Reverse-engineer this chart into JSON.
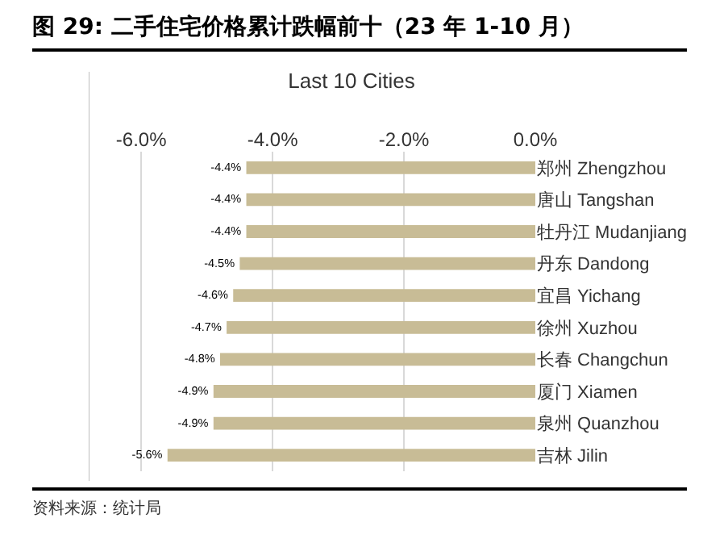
{
  "chart_data": {
    "type": "bar",
    "orientation": "horizontal",
    "title": "图 29: 二手住宅价格累计跌幅前十（23 年 1-10 月）",
    "subtitle": "Last 10 Cities",
    "categories": [
      "郑州 Zhengzhou",
      "唐山 Tangshan",
      "牡丹江 Mudanjiang",
      "丹东 Dandong",
      "宜昌 Yichang",
      "徐州 Xuzhou",
      "长春 Changchun",
      "厦门 Xiamen",
      "泉州 Quanzhou",
      "吉林 Jilin"
    ],
    "values": [
      -4.4,
      -4.4,
      -4.4,
      -4.5,
      -4.6,
      -4.7,
      -4.8,
      -4.9,
      -4.9,
      -5.6
    ],
    "value_labels": [
      "-4.4%",
      "-4.4%",
      "-4.4%",
      "-4.5%",
      "-4.6%",
      "-4.7%",
      "-4.8%",
      "-4.9%",
      "-4.9%",
      "-5.6%"
    ],
    "color": "#c8bc96",
    "xlim": [
      -6.8,
      0
    ],
    "xticks": [
      {
        "value": -6,
        "label": "-6.0%"
      },
      {
        "value": -4,
        "label": "-4.0%"
      },
      {
        "value": -2,
        "label": "-2.0%"
      },
      {
        "value": 0,
        "label": "0.0%"
      }
    ],
    "grid": "x",
    "annotations": [
      "资料来源：统计局"
    ]
  }
}
